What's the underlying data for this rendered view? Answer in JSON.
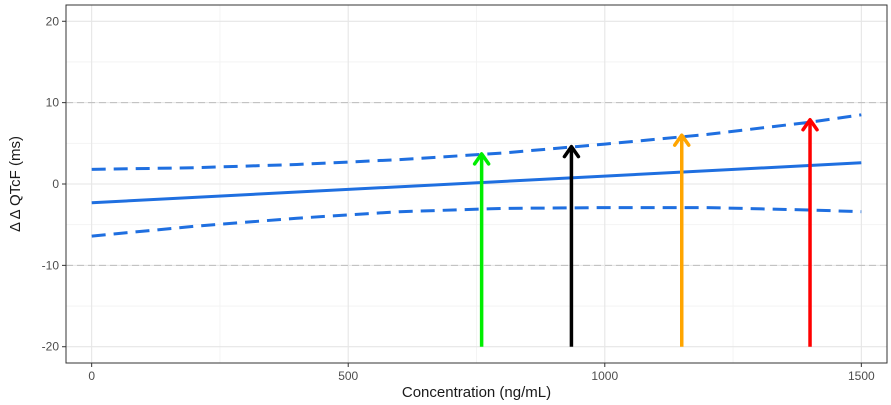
{
  "chart_data": {
    "type": "line",
    "title": "",
    "xlabel": "Concentration (ng/mL)",
    "ylabel": "Δ Δ QTcF (ms)",
    "xlim": [
      -50,
      1550
    ],
    "ylim": [
      -22,
      22
    ],
    "x_ticks": [
      0,
      500,
      1000,
      1500
    ],
    "x_tick_labels": [
      "0",
      "500",
      "1000",
      "1500"
    ],
    "y_ticks": [
      -20,
      -10,
      0,
      10,
      20
    ],
    "y_tick_labels": [
      "-20",
      "-10",
      "0",
      "10",
      "20"
    ],
    "grid": true,
    "theme": "bw",
    "reference_lines": [
      {
        "axis": "y",
        "value": 10,
        "style": "dashed",
        "color": "#bdbdbd"
      },
      {
        "axis": "y",
        "value": -10,
        "style": "dashed",
        "color": "#bdbdbd"
      }
    ],
    "series": [
      {
        "role": "fit",
        "style": "solid",
        "color": "#1f6fe0",
        "x": [
          0,
          1500
        ],
        "y": [
          -2.3,
          2.6
        ]
      },
      {
        "role": "upper-ci",
        "style": "dashed",
        "color": "#1f6fe0",
        "x": [
          0,
          200,
          400,
          600,
          800,
          1000,
          1200,
          1400,
          1500
        ],
        "y": [
          1.8,
          2.0,
          2.4,
          3.0,
          3.8,
          4.9,
          6.1,
          7.6,
          8.5
        ]
      },
      {
        "role": "lower-ci",
        "style": "dashed",
        "color": "#1f6fe0",
        "x": [
          0,
          200,
          400,
          600,
          800,
          1000,
          1200,
          1400,
          1500
        ],
        "y": [
          -6.4,
          -5.2,
          -4.2,
          -3.4,
          -3.0,
          -2.9,
          -2.9,
          -3.2,
          -3.4
        ]
      }
    ],
    "arrows": [
      {
        "x": 760,
        "y_start": -20,
        "y_end": 3.7,
        "color": "#00ee00"
      },
      {
        "x": 935,
        "y_start": -20,
        "y_end": 4.6,
        "color": "#000000"
      },
      {
        "x": 1150,
        "y_start": -20,
        "y_end": 6.0,
        "color": "#ffa500"
      },
      {
        "x": 1400,
        "y_start": -20,
        "y_end": 7.9,
        "color": "#ff0000"
      }
    ]
  }
}
